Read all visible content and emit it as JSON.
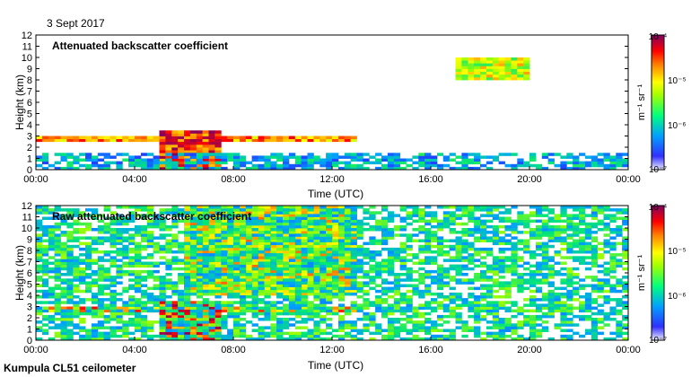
{
  "date_label": "3 Sept 2017",
  "footer_label": "Kumpula CL51 ceilometer",
  "colorbar": {
    "unit_label": "m⁻¹ sr⁻¹",
    "tick_labels": [
      "10⁻⁴",
      "10⁻⁵",
      "10⁻⁶",
      "10⁻⁷"
    ],
    "colors": [
      "#f0f0ff",
      "#0000ff",
      "#00c0ff",
      "#00ff00",
      "#ffff00",
      "#ff8000",
      "#ff0000",
      "#c00040",
      "#800060"
    ]
  },
  "chart_data": [
    {
      "type": "heatmap",
      "title": "Attenuated backscatter coefficient",
      "xlabel": "Time (UTC)",
      "ylabel": "Height (km)",
      "xticks": [
        "00:00",
        "04:00",
        "08:00",
        "12:00",
        "16:00",
        "20:00",
        "00:00"
      ],
      "yticks": [
        "0",
        "1",
        "2",
        "3",
        "4",
        "5",
        "6",
        "7",
        "8",
        "9",
        "10",
        "11",
        "12"
      ],
      "xlim_hours": [
        0,
        24
      ],
      "ylim_km": [
        0,
        12
      ],
      "value_range": [
        1e-07,
        0.0001
      ],
      "scale": "log",
      "layers": [
        {
          "t_start": 0.0,
          "t_end": 13.0,
          "h_low": 2.5,
          "h_high": 3.0,
          "level": 0.75
        },
        {
          "t_start": 5.0,
          "t_end": 7.5,
          "h_low": 0.0,
          "h_high": 3.5,
          "level": 0.85
        },
        {
          "t_start": 17.0,
          "t_end": 20.0,
          "h_low": 8.0,
          "h_high": 9.8,
          "level": 0.6
        },
        {
          "t_start": 0.0,
          "t_end": 24.0,
          "h_low": 0.0,
          "h_high": 1.5,
          "level": 0.3
        }
      ]
    },
    {
      "type": "heatmap",
      "title": "Raw attenuated backscatter coefficient",
      "xlabel": "Time (UTC)",
      "ylabel": "Height (km)",
      "xticks": [
        "00:00",
        "04:00",
        "08:00",
        "12:00",
        "16:00",
        "20:00",
        "00:00"
      ],
      "yticks": [
        "0",
        "1",
        "2",
        "3",
        "4",
        "5",
        "6",
        "7",
        "8",
        "9",
        "10",
        "11",
        "12"
      ],
      "xlim_hours": [
        0,
        24
      ],
      "ylim_km": [
        0,
        12
      ],
      "value_range": [
        1e-07,
        0.0001
      ],
      "scale": "log",
      "layers": [
        {
          "t_start": 0.0,
          "t_end": 13.0,
          "h_low": 2.5,
          "h_high": 3.0,
          "level": 0.75
        },
        {
          "t_start": 5.0,
          "t_end": 7.5,
          "h_low": 0.0,
          "h_high": 3.5,
          "level": 0.85
        },
        {
          "t_start": 6.0,
          "t_end": 13.0,
          "h_low": 4.0,
          "h_high": 12.0,
          "level": 0.65
        },
        {
          "t_start": 0.0,
          "t_end": 24.0,
          "h_low": 0.0,
          "h_high": 12.0,
          "level": 0.4
        }
      ]
    }
  ]
}
